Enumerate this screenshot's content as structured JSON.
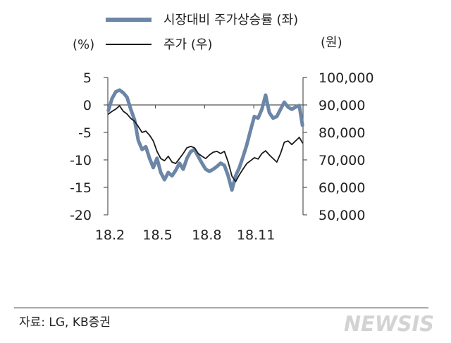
{
  "chart_data": {
    "type": "line",
    "legend": "top",
    "grid": false,
    "x_axis": {
      "type": "date",
      "range": [
        "2018-02-01",
        "2019-02-01"
      ],
      "tick_labels": [
        "18.2",
        "18.5",
        "18.8",
        "18.11"
      ]
    },
    "y_left": {
      "label": "(%)",
      "range": [
        -20,
        5
      ],
      "ticks": [
        5,
        0,
        -5,
        -10,
        -15,
        -20
      ]
    },
    "y_right": {
      "label": "(원)",
      "range": [
        50000,
        100000
      ],
      "ticks": [
        100000,
        90000,
        80000,
        70000,
        60000,
        50000
      ],
      "tick_labels": [
        "100,000",
        "90,000",
        "80,000",
        "70,000",
        "60,000",
        "50,000"
      ]
    },
    "x": [
      "2018-02-02",
      "2018-02-09",
      "2018-02-16",
      "2018-02-23",
      "2018-03-02",
      "2018-03-09",
      "2018-03-16",
      "2018-03-23",
      "2018-03-30",
      "2018-04-06",
      "2018-04-13",
      "2018-04-20",
      "2018-04-27",
      "2018-05-04",
      "2018-05-11",
      "2018-05-18",
      "2018-05-25",
      "2018-06-01",
      "2018-06-08",
      "2018-06-15",
      "2018-06-22",
      "2018-06-29",
      "2018-07-06",
      "2018-07-13",
      "2018-07-20",
      "2018-07-27",
      "2018-08-03",
      "2018-08-10",
      "2018-08-17",
      "2018-08-24",
      "2018-08-31",
      "2018-09-07",
      "2018-09-14",
      "2018-09-21",
      "2018-09-28",
      "2018-10-05",
      "2018-10-12",
      "2018-10-19",
      "2018-10-26",
      "2018-11-02",
      "2018-11-09",
      "2018-11-16",
      "2018-11-23",
      "2018-11-30",
      "2018-12-07",
      "2018-12-14",
      "2018-12-21",
      "2018-12-28",
      "2019-01-04",
      "2019-01-11",
      "2019-01-18",
      "2019-01-25",
      "2019-01-31"
    ],
    "series": [
      {
        "name": "시장대비 주가상승률 (좌)",
        "axis": "left",
        "color": "#6c86a7",
        "values": [
          -1.0,
          1.2,
          2.4,
          2.7,
          2.2,
          1.4,
          -0.8,
          -2.7,
          -6.5,
          -8.1,
          -7.6,
          -9.7,
          -11.4,
          -9.7,
          -12.3,
          -13.6,
          -12.3,
          -12.9,
          -11.9,
          -10.6,
          -11.7,
          -9.7,
          -8.5,
          -8.1,
          -9.4,
          -10.6,
          -11.7,
          -12.1,
          -11.7,
          -11.2,
          -10.6,
          -11.0,
          -12.9,
          -15.5,
          -12.9,
          -11.4,
          -9.4,
          -7.2,
          -4.6,
          -2.1,
          -2.4,
          -0.8,
          1.8,
          -1.4,
          -2.4,
          -2.1,
          -0.8,
          0.5,
          -0.4,
          -0.8,
          -0.4,
          -0.1,
          -3.7
        ]
      },
      {
        "name": "주가 (우)",
        "axis": "right",
        "color": "#1a1a1a",
        "values": [
          86700,
          87700,
          88500,
          89700,
          87700,
          86700,
          85100,
          84100,
          82100,
          80000,
          80500,
          79000,
          76900,
          73100,
          70500,
          69700,
          71300,
          69200,
          68700,
          70500,
          72300,
          74400,
          74900,
          74400,
          72300,
          71300,
          70500,
          71800,
          72800,
          73100,
          72300,
          73100,
          69200,
          64100,
          62100,
          64600,
          66700,
          68700,
          69700,
          70800,
          70300,
          72300,
          73300,
          71800,
          70500,
          69200,
          72300,
          76400,
          76900,
          75600,
          76900,
          78200,
          76200
        ]
      }
    ]
  },
  "source": "자료: LG, KB증권",
  "watermark": "NEWSIS"
}
